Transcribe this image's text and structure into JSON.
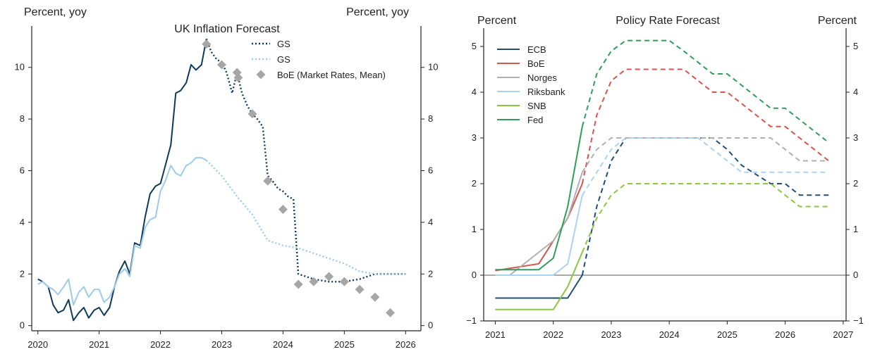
{
  "chart_data": [
    {
      "type": "line",
      "title": "UK Inflation Forecast",
      "ylabel_left": "Percent, yoy",
      "ylabel_right": "Percent, yoy",
      "xlim": [
        2019.9,
        2026.25
      ],
      "ylim": [
        -0.2,
        11.6
      ],
      "xticks": [
        2020,
        2021,
        2022,
        2023,
        2024,
        2025,
        2026
      ],
      "yticks": [
        0,
        2,
        4,
        6,
        8,
        10
      ],
      "legend_position": "top-center",
      "series": [
        {
          "name": "",
          "style": "solid",
          "color": "#0d3a5c",
          "x": [
            2020.0,
            2020.08,
            2020.17,
            2020.25,
            2020.33,
            2020.42,
            2020.5,
            2020.58,
            2020.67,
            2020.75,
            2020.83,
            2020.92,
            2021.0,
            2021.08,
            2021.17,
            2021.25,
            2021.33,
            2021.42,
            2021.5,
            2021.58,
            2021.67,
            2021.75,
            2021.83,
            2021.92,
            2022.0,
            2022.08,
            2022.17,
            2022.25,
            2022.33,
            2022.42,
            2022.5,
            2022.58,
            2022.67,
            2022.75
          ],
          "y": [
            1.8,
            1.7,
            1.5,
            0.8,
            0.5,
            0.6,
            1.0,
            0.2,
            0.5,
            0.7,
            0.3,
            0.6,
            0.7,
            0.4,
            0.7,
            1.5,
            2.1,
            2.5,
            2.0,
            3.2,
            3.1,
            4.2,
            5.1,
            5.4,
            5.5,
            6.2,
            7.0,
            9.0,
            9.1,
            9.4,
            10.1,
            9.9,
            10.1,
            11.1
          ]
        },
        {
          "name": "GS",
          "style": "dotted",
          "color": "#0d3a5c",
          "x": [
            2022.75,
            2022.83,
            2022.92,
            2023.0,
            2023.08,
            2023.17,
            2023.25,
            2023.33,
            2023.42,
            2023.5,
            2023.58,
            2023.67,
            2023.75,
            2023.83,
            2023.92,
            2024.0,
            2024.08,
            2024.17,
            2024.25,
            2024.5,
            2024.75,
            2025.0,
            2025.25,
            2025.5,
            2025.75,
            2026.0
          ],
          "y": [
            11.1,
            10.6,
            10.3,
            10.2,
            9.8,
            9.0,
            9.8,
            9.0,
            8.5,
            8.2,
            8.0,
            7.7,
            5.8,
            5.6,
            5.3,
            5.2,
            5.0,
            4.9,
            2.0,
            1.8,
            1.7,
            1.7,
            1.8,
            2.0,
            2.0,
            2.0
          ]
        },
        {
          "name": "",
          "style": "solid",
          "color": "#9dcbe9",
          "x": [
            2020.0,
            2020.08,
            2020.17,
            2020.25,
            2020.33,
            2020.42,
            2020.5,
            2020.58,
            2020.67,
            2020.75,
            2020.83,
            2020.92,
            2021.0,
            2021.08,
            2021.17,
            2021.25,
            2021.33,
            2021.42,
            2021.5,
            2021.58,
            2021.67,
            2021.75,
            2021.83,
            2021.92,
            2022.0,
            2022.08,
            2022.17,
            2022.25,
            2022.33,
            2022.42,
            2022.5,
            2022.58,
            2022.67,
            2022.75
          ],
          "y": [
            1.6,
            1.7,
            1.5,
            1.4,
            1.2,
            1.5,
            1.8,
            0.8,
            1.3,
            1.5,
            1.1,
            1.4,
            1.4,
            0.9,
            1.1,
            1.5,
            2.0,
            2.2,
            1.9,
            3.1,
            3.0,
            3.8,
            4.1,
            4.2,
            5.2,
            5.6,
            6.2,
            5.9,
            5.8,
            6.2,
            6.3,
            6.5,
            6.5,
            6.4
          ]
        },
        {
          "name": "GS",
          "style": "dotted",
          "color": "#9dcbe9",
          "x": [
            2022.75,
            2023.0,
            2023.25,
            2023.5,
            2023.75,
            2024.0,
            2024.25,
            2024.5,
            2024.75,
            2025.0,
            2025.25,
            2025.5,
            2025.75,
            2026.0
          ],
          "y": [
            6.4,
            5.8,
            5.0,
            4.3,
            3.3,
            3.1,
            3.0,
            2.8,
            2.6,
            2.4,
            2.1,
            2.0,
            2.0,
            2.0
          ]
        },
        {
          "name": "BoE (Market Rates, Mean)",
          "style": "diamond",
          "color": "#a6a6a6",
          "x": [
            2022.75,
            2023.0,
            2023.25,
            2023.27,
            2023.5,
            2023.75,
            2024.0,
            2024.25,
            2024.5,
            2024.75,
            2025.0,
            2025.25,
            2025.5,
            2025.75
          ],
          "y": [
            10.9,
            10.1,
            9.8,
            9.6,
            8.2,
            5.6,
            4.5,
            1.6,
            1.7,
            1.9,
            1.7,
            1.4,
            1.1,
            0.5
          ]
        }
      ]
    },
    {
      "type": "line",
      "title": "Policy Rate Forecast",
      "ylabel_left": "Percent",
      "ylabel_right": "Percent",
      "xlim": [
        2020.8,
        2027.05
      ],
      "ylim": [
        -1.0,
        5.4
      ],
      "xticks": [
        2021,
        2022,
        2023,
        2024,
        2025,
        2026,
        2027
      ],
      "yticks": [
        -1,
        0,
        1,
        2,
        3,
        4,
        5
      ],
      "legend_position": "top-left",
      "note": "solid segment = realized, dashed segment = forecast",
      "series": [
        {
          "name": "ECB",
          "color": "#1f4e79",
          "x": [
            2021.0,
            2022.25,
            2022.5,
            2022.75,
            2023.0,
            2023.25,
            2024.5,
            2024.75,
            2025.0,
            2025.25,
            2025.75,
            2026.0,
            2026.25,
            2026.75
          ],
          "y": [
            -0.5,
            -0.5,
            0.0,
            1.5,
            2.5,
            3.0,
            3.0,
            3.0,
            2.75,
            2.4,
            2.0,
            2.0,
            1.75,
            1.75
          ],
          "split_x": 2022.5
        },
        {
          "name": "BoE",
          "color": "#d9534f",
          "x": [
            2021.0,
            2021.75,
            2022.0,
            2022.25,
            2022.5,
            2022.75,
            2023.0,
            2023.25,
            2024.25,
            2024.75,
            2025.0,
            2025.75,
            2026.0,
            2026.75
          ],
          "y": [
            0.1,
            0.25,
            0.75,
            1.25,
            2.0,
            3.5,
            4.25,
            4.5,
            4.5,
            4.0,
            4.0,
            3.25,
            3.25,
            2.5
          ],
          "split_x": 2022.5
        },
        {
          "name": "Norges",
          "color": "#b0b0b0",
          "x": [
            2021.0,
            2021.25,
            2021.75,
            2022.0,
            2022.25,
            2022.5,
            2022.75,
            2023.0,
            2023.25,
            2025.75,
            2026.0,
            2026.25,
            2026.75
          ],
          "y": [
            0.0,
            0.0,
            0.5,
            0.75,
            1.25,
            2.25,
            2.75,
            3.0,
            3.0,
            3.0,
            2.75,
            2.5,
            2.5
          ],
          "split_x": 2022.5
        },
        {
          "name": "Riksbank",
          "color": "#a9d3f0",
          "x": [
            2021.0,
            2022.0,
            2022.25,
            2022.5,
            2022.75,
            2023.0,
            2023.25,
            2024.5,
            2024.75,
            2025.0,
            2025.25,
            2026.75
          ],
          "y": [
            0.0,
            0.0,
            0.25,
            1.75,
            2.25,
            2.75,
            3.0,
            3.0,
            2.75,
            2.5,
            2.25,
            2.25
          ],
          "split_x": 2022.5
        },
        {
          "name": "SNB",
          "color": "#8cc63f",
          "x": [
            2021.0,
            2022.0,
            2022.25,
            2022.5,
            2022.75,
            2023.0,
            2023.25,
            2025.75,
            2026.0,
            2026.25,
            2026.75
          ],
          "y": [
            -0.75,
            -0.75,
            -0.25,
            0.5,
            1.25,
            1.75,
            2.0,
            2.0,
            1.75,
            1.5,
            1.5
          ],
          "split_x": 2022.5
        },
        {
          "name": "Fed",
          "color": "#2e9e5b",
          "x": [
            2021.0,
            2021.75,
            2022.0,
            2022.25,
            2022.5,
            2022.75,
            2023.0,
            2023.25,
            2024.0,
            2024.25,
            2024.75,
            2025.0,
            2025.75,
            2026.0,
            2026.75
          ],
          "y": [
            0.12,
            0.12,
            0.37,
            1.5,
            3.25,
            4.4,
            4.9,
            5.13,
            5.13,
            4.9,
            4.4,
            4.4,
            3.65,
            3.65,
            2.9
          ],
          "split_x": 2022.5
        }
      ]
    }
  ]
}
